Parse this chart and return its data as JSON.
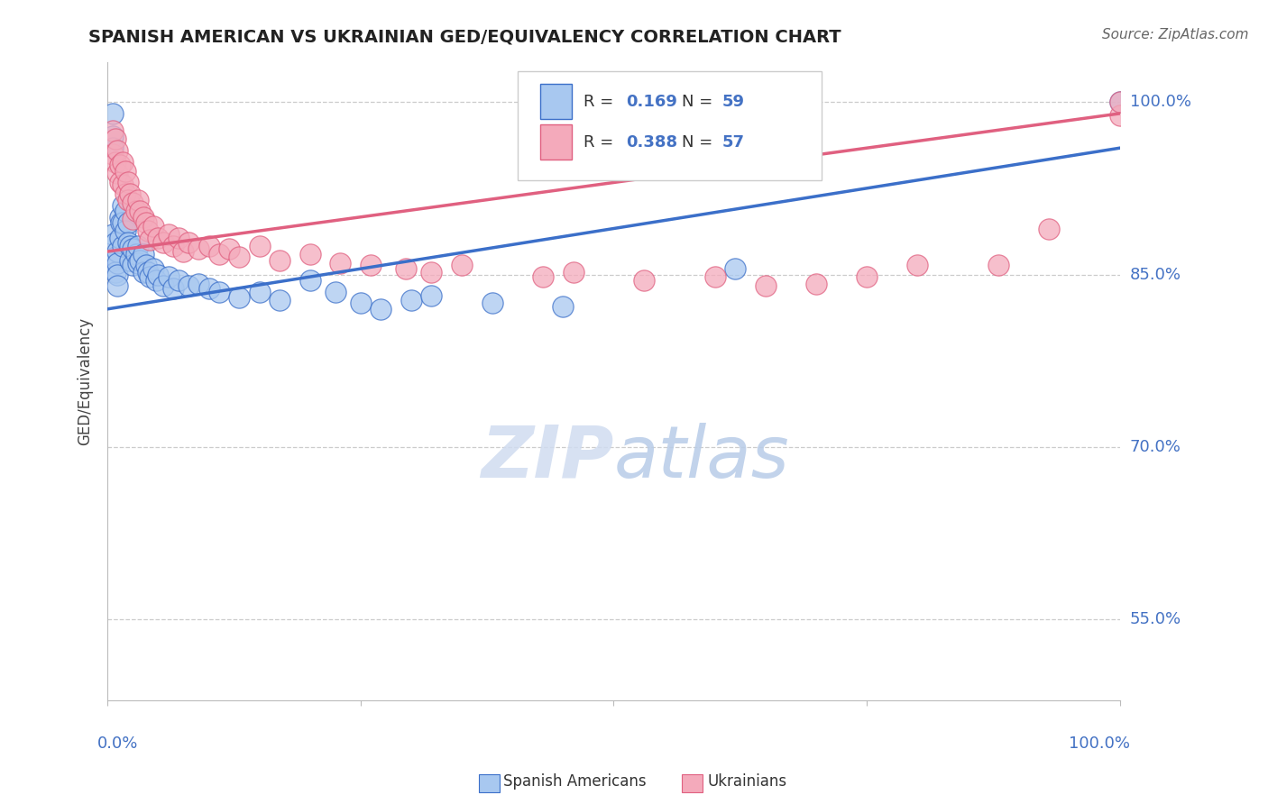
{
  "title": "SPANISH AMERICAN VS UKRAINIAN GED/EQUIVALENCY CORRELATION CHART",
  "source": "Source: ZipAtlas.com",
  "ylabel": "GED/Equivalency",
  "ytick_labels": [
    "55.0%",
    "70.0%",
    "85.0%",
    "100.0%"
  ],
  "ytick_values": [
    0.55,
    0.7,
    0.85,
    1.0
  ],
  "xlim": [
    0.0,
    1.0
  ],
  "ylim": [
    0.48,
    1.035
  ],
  "blue_color": "#A8C8F0",
  "pink_color": "#F4AABB",
  "blue_line_color": "#3B6FC9",
  "pink_line_color": "#E06080",
  "blue_trend_y_start": 0.82,
  "blue_trend_y_end": 0.96,
  "pink_trend_y_start": 0.87,
  "pink_trend_y_end": 0.99,
  "blue_x": [
    0.005,
    0.005,
    0.005,
    0.005,
    0.005,
    0.008,
    0.008,
    0.008,
    0.01,
    0.01,
    0.01,
    0.01,
    0.012,
    0.012,
    0.013,
    0.015,
    0.015,
    0.015,
    0.018,
    0.018,
    0.02,
    0.02,
    0.022,
    0.022,
    0.025,
    0.025,
    0.028,
    0.03,
    0.03,
    0.032,
    0.035,
    0.035,
    0.038,
    0.04,
    0.042,
    0.045,
    0.048,
    0.05,
    0.055,
    0.06,
    0.065,
    0.07,
    0.08,
    0.09,
    0.1,
    0.11,
    0.13,
    0.15,
    0.17,
    0.2,
    0.225,
    0.25,
    0.27,
    0.3,
    0.32,
    0.38,
    0.45,
    0.62,
    1.0
  ],
  "blue_y": [
    0.99,
    0.97,
    0.96,
    0.885,
    0.862,
    0.878,
    0.865,
    0.852,
    0.87,
    0.86,
    0.85,
    0.84,
    0.9,
    0.882,
    0.895,
    0.91,
    0.895,
    0.875,
    0.905,
    0.888,
    0.895,
    0.878,
    0.875,
    0.862,
    0.872,
    0.858,
    0.868,
    0.875,
    0.86,
    0.862,
    0.868,
    0.852,
    0.858,
    0.852,
    0.848,
    0.855,
    0.845,
    0.85,
    0.84,
    0.848,
    0.838,
    0.845,
    0.84,
    0.842,
    0.838,
    0.835,
    0.83,
    0.835,
    0.828,
    0.845,
    0.835,
    0.825,
    0.82,
    0.828,
    0.832,
    0.825,
    0.822,
    0.855,
    1.0
  ],
  "pink_x": [
    0.005,
    0.005,
    0.008,
    0.008,
    0.01,
    0.01,
    0.012,
    0.012,
    0.015,
    0.015,
    0.018,
    0.018,
    0.02,
    0.02,
    0.022,
    0.025,
    0.025,
    0.028,
    0.03,
    0.032,
    0.035,
    0.038,
    0.04,
    0.042,
    0.045,
    0.05,
    0.055,
    0.06,
    0.065,
    0.07,
    0.075,
    0.08,
    0.09,
    0.1,
    0.11,
    0.12,
    0.13,
    0.15,
    0.17,
    0.2,
    0.23,
    0.26,
    0.295,
    0.32,
    0.35,
    0.43,
    0.46,
    0.53,
    0.6,
    0.65,
    0.7,
    0.75,
    0.8,
    0.88,
    0.93,
    1.0,
    1.0
  ],
  "pink_y": [
    0.975,
    0.955,
    0.968,
    0.948,
    0.958,
    0.938,
    0.945,
    0.93,
    0.948,
    0.928,
    0.94,
    0.92,
    0.93,
    0.915,
    0.92,
    0.912,
    0.898,
    0.905,
    0.915,
    0.905,
    0.9,
    0.895,
    0.888,
    0.88,
    0.892,
    0.882,
    0.878,
    0.885,
    0.875,
    0.882,
    0.87,
    0.878,
    0.872,
    0.875,
    0.868,
    0.872,
    0.865,
    0.875,
    0.862,
    0.868,
    0.86,
    0.858,
    0.855,
    0.852,
    0.858,
    0.848,
    0.852,
    0.845,
    0.848,
    0.84,
    0.842,
    0.848,
    0.858,
    0.858,
    0.89,
    0.988,
    1.0
  ]
}
